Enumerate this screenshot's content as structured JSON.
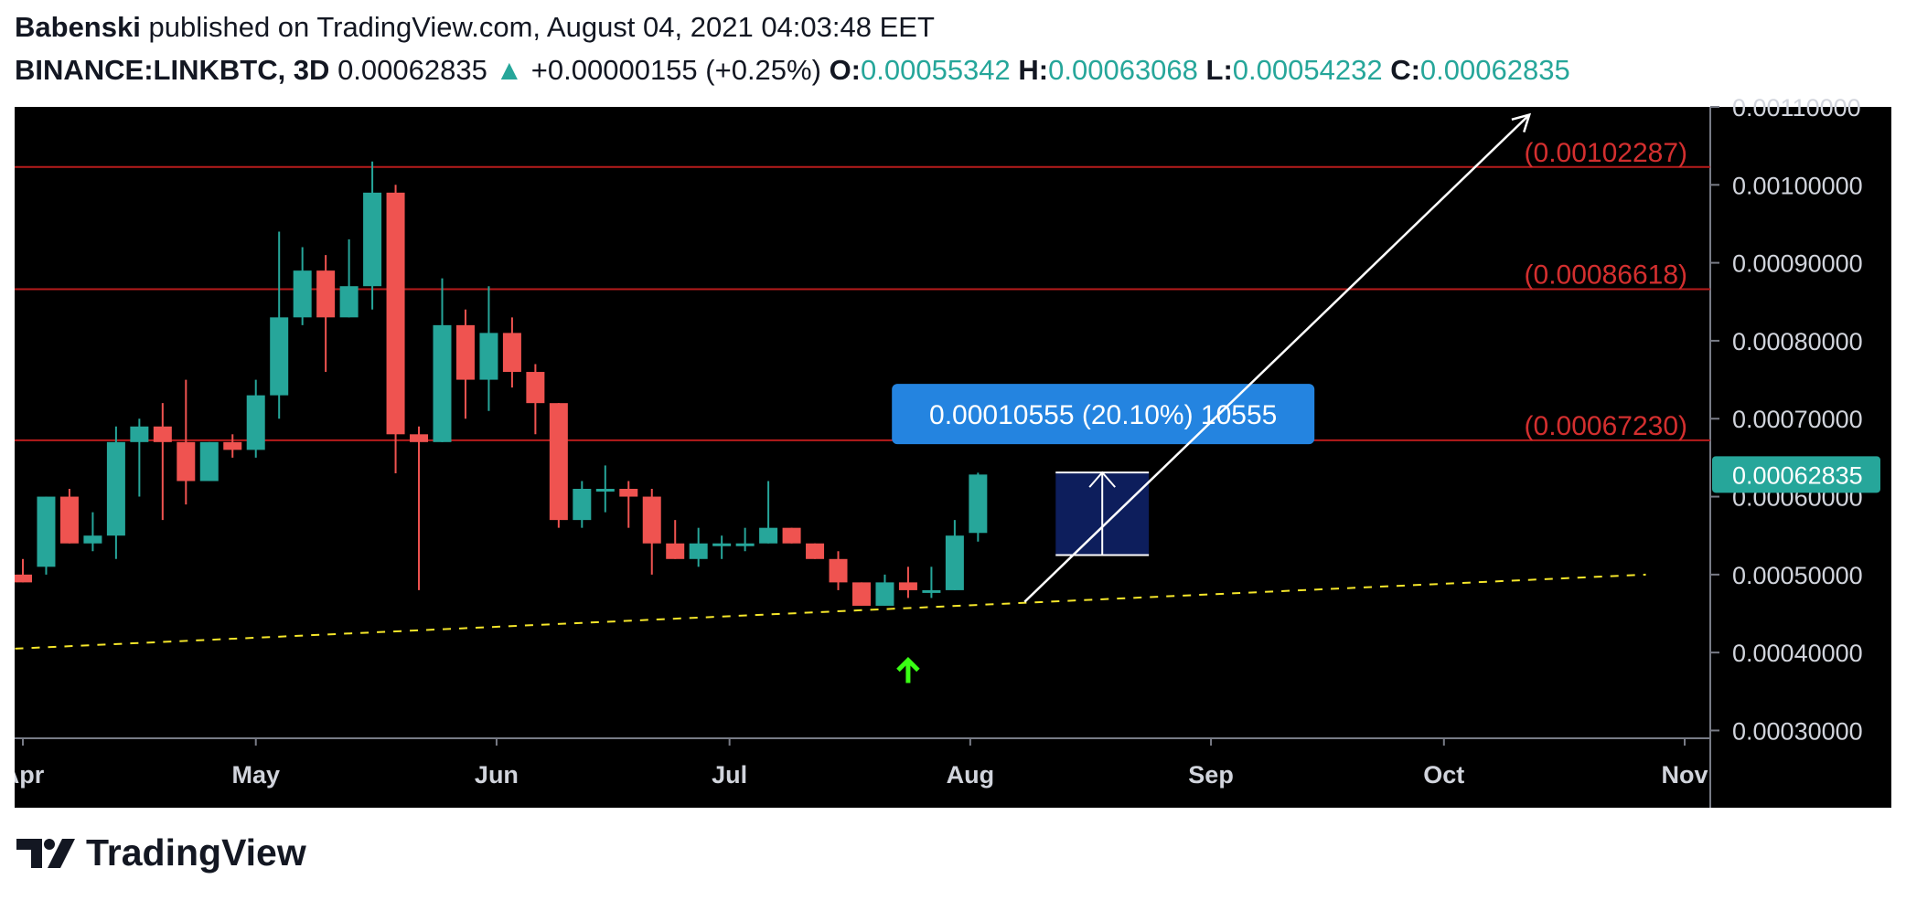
{
  "header": {
    "author": "Babenski",
    "published_text": "published on TradingView.com, August 04, 2021 04:03:48 EET",
    "symbol": "BINANCE:LINKBTC, 3D",
    "last_price": "0.00062835",
    "change_arrow": "▲",
    "change": "+0.00000155 (+0.25%)",
    "o_label": "O:",
    "o_value": "0.00055342",
    "h_label": "H:",
    "h_value": "0.00063068",
    "l_label": "L:",
    "l_value": "0.00054232",
    "c_label": "C:",
    "c_value": "0.00062835"
  },
  "brand": {
    "name": "TradingView",
    "icon": "tradingview-logo-icon"
  },
  "colors": {
    "background": "#000000",
    "up": "#26a69a",
    "down": "#ef5350",
    "resistance": "#b71c1c",
    "resistance_label": "#d32f2f",
    "trendline": "#f5e62a",
    "arrow": "#ffffff",
    "signal_arrow": "#39ff14",
    "measure_fill": "#0d1e5c",
    "measure_label_bg": "#2484e0",
    "price_tag_bg": "#26a69a",
    "axis_text": "#d1d4dc"
  },
  "chart_data": {
    "type": "candlestick",
    "title": "",
    "xlabel": "",
    "ylabel": "",
    "ylim": [
      0.00029,
      0.0011
    ],
    "x_tick_labels": [
      "Apr",
      "May",
      "Jun",
      "Jul",
      "Aug",
      "Sep",
      "Oct",
      "Nov"
    ],
    "x_tick_dates": [
      "2021-04-01",
      "2021-05-01",
      "2021-06-01",
      "2021-07-01",
      "2021-08-01",
      "2021-09-01",
      "2021-10-01",
      "2021-11-01"
    ],
    "y_ticks": [
      "0.00030000",
      "0.00040000",
      "0.00050000",
      "0.00060000",
      "0.00070000",
      "0.00080000",
      "0.00090000",
      "0.00100000",
      "0.00110000"
    ],
    "candles": [
      {
        "date": "2021-04-01",
        "o": 0.0005,
        "h": 0.00052,
        "l": 0.00049,
        "c": 0.00049
      },
      {
        "date": "2021-04-04",
        "o": 0.00051,
        "h": 0.0006,
        "l": 0.0005,
        "c": 0.0006
      },
      {
        "date": "2021-04-07",
        "o": 0.0006,
        "h": 0.00061,
        "l": 0.00054,
        "c": 0.00054
      },
      {
        "date": "2021-04-10",
        "o": 0.00054,
        "h": 0.00058,
        "l": 0.00053,
        "c": 0.00055
      },
      {
        "date": "2021-04-13",
        "o": 0.00055,
        "h": 0.00069,
        "l": 0.00052,
        "c": 0.00067
      },
      {
        "date": "2021-04-16",
        "o": 0.00067,
        "h": 0.0007,
        "l": 0.0006,
        "c": 0.00069
      },
      {
        "date": "2021-04-19",
        "o": 0.00069,
        "h": 0.00072,
        "l": 0.00057,
        "c": 0.00067
      },
      {
        "date": "2021-04-22",
        "o": 0.00067,
        "h": 0.00075,
        "l": 0.00059,
        "c": 0.00062
      },
      {
        "date": "2021-04-25",
        "o": 0.00062,
        "h": 0.00067,
        "l": 0.00062,
        "c": 0.00067
      },
      {
        "date": "2021-04-28",
        "o": 0.00067,
        "h": 0.00068,
        "l": 0.00065,
        "c": 0.00066
      },
      {
        "date": "2021-05-01",
        "o": 0.00066,
        "h": 0.00075,
        "l": 0.00065,
        "c": 0.00073
      },
      {
        "date": "2021-05-04",
        "o": 0.00073,
        "h": 0.00094,
        "l": 0.0007,
        "c": 0.00083
      },
      {
        "date": "2021-05-07",
        "o": 0.00083,
        "h": 0.00092,
        "l": 0.00082,
        "c": 0.00089
      },
      {
        "date": "2021-05-10",
        "o": 0.00089,
        "h": 0.00091,
        "l": 0.00076,
        "c": 0.00083
      },
      {
        "date": "2021-05-13",
        "o": 0.00083,
        "h": 0.00093,
        "l": 0.00083,
        "c": 0.00087
      },
      {
        "date": "2021-05-16",
        "o": 0.00087,
        "h": 0.00103,
        "l": 0.00084,
        "c": 0.00099
      },
      {
        "date": "2021-05-19",
        "o": 0.00099,
        "h": 0.001,
        "l": 0.00063,
        "c": 0.00068
      },
      {
        "date": "2021-05-22",
        "o": 0.00068,
        "h": 0.00069,
        "l": 0.00048,
        "c": 0.00067
      },
      {
        "date": "2021-05-25",
        "o": 0.00067,
        "h": 0.00088,
        "l": 0.00067,
        "c": 0.00082
      },
      {
        "date": "2021-05-28",
        "o": 0.00082,
        "h": 0.00084,
        "l": 0.0007,
        "c": 0.00075
      },
      {
        "date": "2021-05-31",
        "o": 0.00075,
        "h": 0.00087,
        "l": 0.00071,
        "c": 0.00081
      },
      {
        "date": "2021-06-03",
        "o": 0.00081,
        "h": 0.00083,
        "l": 0.00074,
        "c": 0.00076
      },
      {
        "date": "2021-06-06",
        "o": 0.00076,
        "h": 0.00077,
        "l": 0.00068,
        "c": 0.00072
      },
      {
        "date": "2021-06-09",
        "o": 0.00072,
        "h": 0.00072,
        "l": 0.00056,
        "c": 0.00057
      },
      {
        "date": "2021-06-12",
        "o": 0.00057,
        "h": 0.00062,
        "l": 0.00056,
        "c": 0.00061
      },
      {
        "date": "2021-06-15",
        "o": 0.00061,
        "h": 0.00064,
        "l": 0.00058,
        "c": 0.00061
      },
      {
        "date": "2021-06-18",
        "o": 0.00061,
        "h": 0.00062,
        "l": 0.00056,
        "c": 0.0006
      },
      {
        "date": "2021-06-21",
        "o": 0.0006,
        "h": 0.00061,
        "l": 0.0005,
        "c": 0.00054
      },
      {
        "date": "2021-06-24",
        "o": 0.00054,
        "h": 0.00057,
        "l": 0.00052,
        "c": 0.00052
      },
      {
        "date": "2021-06-27",
        "o": 0.00052,
        "h": 0.00056,
        "l": 0.00051,
        "c": 0.00054
      },
      {
        "date": "2021-06-30",
        "o": 0.00054,
        "h": 0.00055,
        "l": 0.00052,
        "c": 0.00054
      },
      {
        "date": "2021-07-03",
        "o": 0.00054,
        "h": 0.00056,
        "l": 0.00053,
        "c": 0.00054
      },
      {
        "date": "2021-07-06",
        "o": 0.00054,
        "h": 0.00062,
        "l": 0.00054,
        "c": 0.00056
      },
      {
        "date": "2021-07-09",
        "o": 0.00056,
        "h": 0.00056,
        "l": 0.00054,
        "c": 0.00054
      },
      {
        "date": "2021-07-12",
        "o": 0.00054,
        "h": 0.00054,
        "l": 0.00052,
        "c": 0.00052
      },
      {
        "date": "2021-07-15",
        "o": 0.00052,
        "h": 0.00053,
        "l": 0.00048,
        "c": 0.00049
      },
      {
        "date": "2021-07-18",
        "o": 0.00049,
        "h": 0.00049,
        "l": 0.00046,
        "c": 0.00046
      },
      {
        "date": "2021-07-21",
        "o": 0.00046,
        "h": 0.0005,
        "l": 0.00046,
        "c": 0.00049
      },
      {
        "date": "2021-07-24",
        "o": 0.00049,
        "h": 0.00051,
        "l": 0.00047,
        "c": 0.00048
      },
      {
        "date": "2021-07-27",
        "o": 0.00048,
        "h": 0.00051,
        "l": 0.00047,
        "c": 0.00048
      },
      {
        "date": "2021-07-30",
        "o": 0.00048,
        "h": 0.00057,
        "l": 0.00048,
        "c": 0.00055
      },
      {
        "date": "2021-08-02",
        "o": 0.00055342,
        "h": 0.00063068,
        "l": 0.00054232,
        "c": 0.00062835
      }
    ],
    "horizontal_levels": [
      {
        "value": 0.00102287,
        "label": "(0.00102287)"
      },
      {
        "value": 0.00086618,
        "label": "(0.00086618)"
      },
      {
        "value": 0.0006723,
        "label": "(0.00067230)"
      }
    ],
    "trendline": {
      "from": {
        "date": "2021-03-31",
        "value": 0.000405
      },
      "to": {
        "date": "2021-10-27",
        "value": 0.0005
      }
    },
    "projection_arrow": {
      "from": {
        "date": "2021-08-08",
        "value": 0.000465
      },
      "to": {
        "date": "2021-10-12",
        "value": 0.00109
      }
    },
    "signal_arrow": {
      "date": "2021-07-24",
      "value": 0.000375
    },
    "measure": {
      "from_date": "2021-08-12",
      "to_date": "2021-08-24",
      "low": 0.000525,
      "high": 0.000631,
      "label": "0.00010555 (20.10%) 10555"
    },
    "price_tag": "0.00062835"
  }
}
